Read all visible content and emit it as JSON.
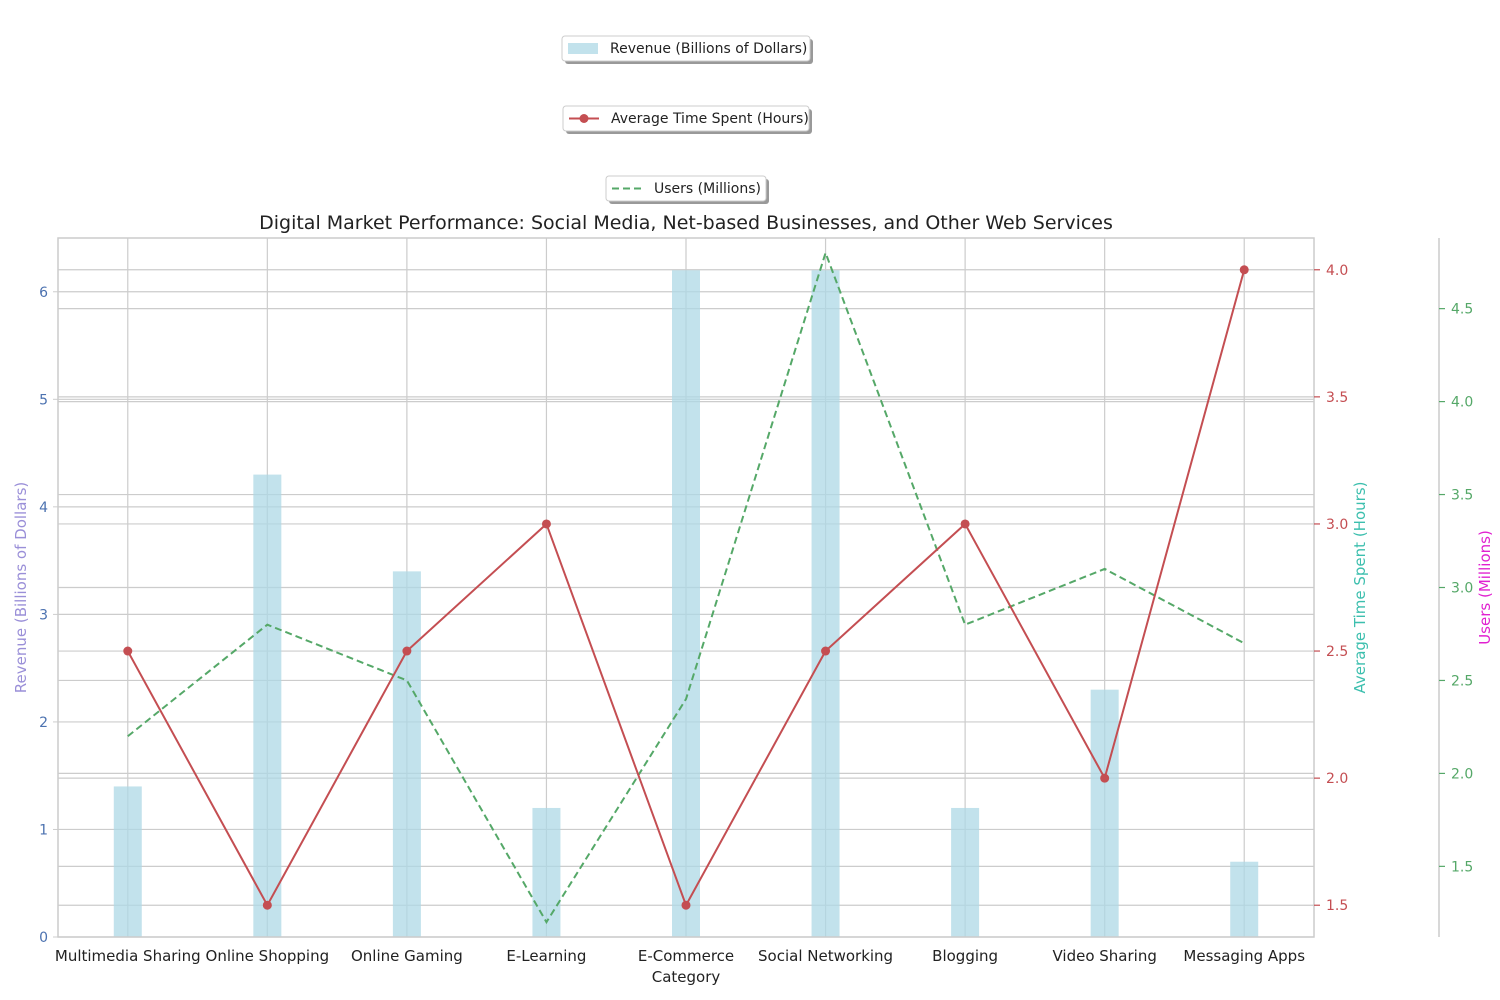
{
  "chart_data": {
    "type": "bar",
    "title": "Digital Market Performance: Social Media, Net-based Businesses, and Other Web Services",
    "xlabel": "Category",
    "categories": [
      "Multimedia Sharing",
      "Online Shopping",
      "Online Gaming",
      "E-Learning",
      "E-Commerce",
      "Social Networking",
      "Blogging",
      "Video Sharing",
      "Messaging Apps"
    ],
    "series": [
      {
        "name": "Revenue (Billions of Dollars)",
        "type": "bar",
        "axis": "left",
        "color": "#add8e6",
        "values": [
          1.4,
          4.3,
          3.4,
          1.2,
          6.2,
          6.2,
          1.2,
          2.3,
          0.7
        ]
      },
      {
        "name": "Average Time Spent (Hours)",
        "type": "line",
        "axis": "right",
        "color": "#c44e52",
        "marker": "circle",
        "values": [
          2.5,
          1.5,
          2.5,
          3.0,
          1.5,
          2.5,
          3.0,
          2.0,
          4.0
        ]
      },
      {
        "name": "Users (Millions)",
        "type": "line",
        "axis": "far-right",
        "color": "#55a868",
        "dash": "dashed",
        "values": [
          2.2,
          2.8,
          2.5,
          1.2,
          2.4,
          4.8,
          2.8,
          3.1,
          2.7
        ]
      }
    ],
    "axes": {
      "left": {
        "label": "Revenue (Billions of Dollars)",
        "label_color": "#9a8fd8",
        "tick_color": "#4c72b0",
        "ylim": [
          0,
          6.5
        ],
        "ticks": [
          0,
          1,
          2,
          3,
          4,
          5,
          6
        ],
        "tick_labels": [
          "0",
          "1",
          "2",
          "3",
          "4",
          "5",
          "6"
        ]
      },
      "right": {
        "label": "Average Time Spent (Hours)",
        "label_color": "#3cbfae",
        "tick_color": "#c44e52",
        "ylim": [
          1.375,
          4.125
        ],
        "ticks": [
          1.5,
          2.0,
          2.5,
          3.0,
          3.5,
          4.0
        ],
        "tick_labels": [
          "1.5",
          "2.0",
          "2.5",
          "3.0",
          "3.5",
          "4.0"
        ]
      },
      "far_right": {
        "label": "Users (Millions)",
        "label_color": "#e020d0",
        "tick_color": "#55a868",
        "ylim": [
          1.12,
          4.88
        ],
        "ticks": [
          1.5,
          2.0,
          2.5,
          3.0,
          3.5,
          4.0,
          4.5
        ],
        "tick_labels": [
          "1.5",
          "2.0",
          "2.5",
          "3.0",
          "3.5",
          "4.0",
          "4.5"
        ]
      }
    },
    "grid": true,
    "legend_position": "top-center"
  }
}
